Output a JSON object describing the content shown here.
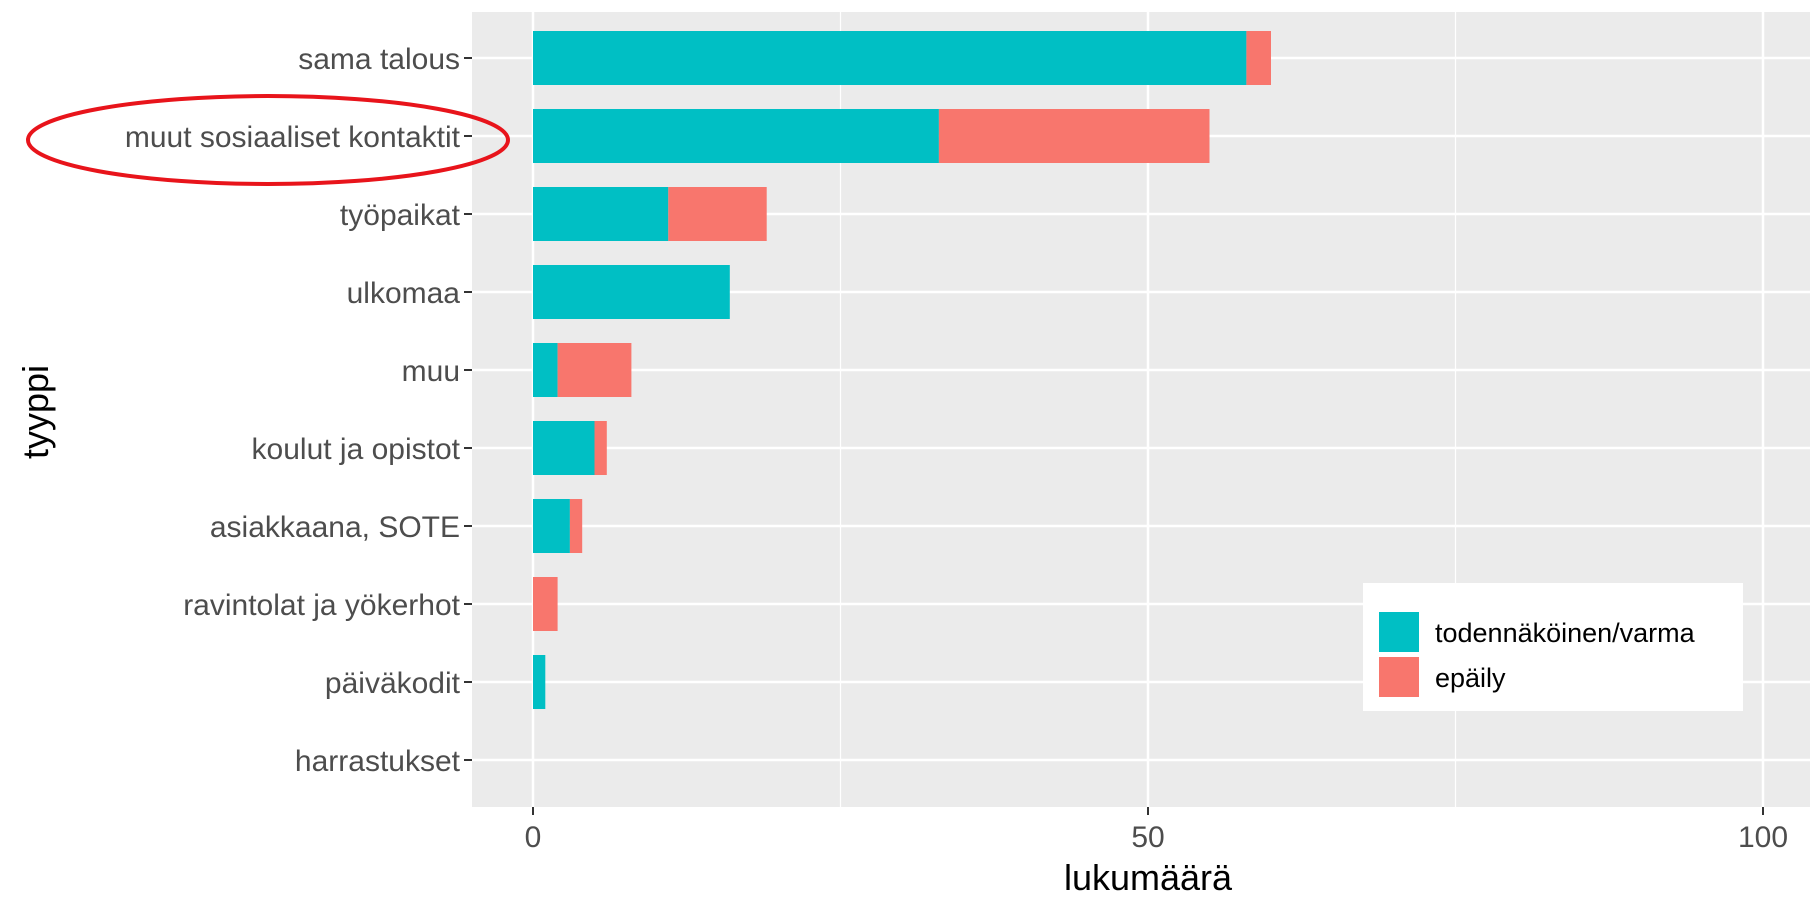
{
  "chart_data": {
    "type": "bar",
    "orientation": "horizontal",
    "stacked": true,
    "xlabel": "lukumäärä",
    "ylabel": "tyyppi",
    "xlim": [
      -2.5,
      103
    ],
    "x_ticks": [
      0,
      50,
      100
    ],
    "x_minor_ticks": [
      25,
      75
    ],
    "grid": true,
    "legend_position": "bottom-right",
    "categories": [
      "sama talous",
      "muut sosiaaliset kontaktit",
      "työpaikat",
      "ulkomaa",
      "muu",
      "koulut ja opistot",
      "asiakkaana, SOTE",
      "ravintolat ja yökerhot",
      "päiväkodit",
      "harrastukset"
    ],
    "series": [
      {
        "name": "todennäköinen/varma",
        "color": "#00BFC4",
        "values": [
          58,
          33,
          11,
          16,
          2,
          5,
          3,
          0,
          1,
          0
        ]
      },
      {
        "name": "epäily",
        "color": "#F8766D",
        "values": [
          2,
          22,
          8,
          0,
          6,
          1,
          1,
          2,
          0,
          0
        ]
      }
    ],
    "highlight": {
      "category": "muut sosiaaliset kontaktit",
      "shape": "ellipse",
      "color": "#e8141b"
    }
  }
}
